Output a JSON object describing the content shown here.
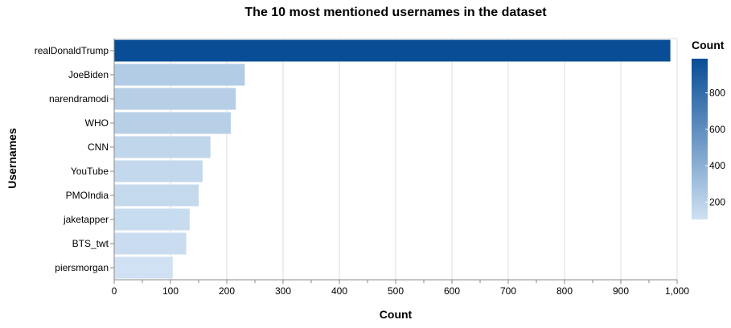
{
  "chart_data": {
    "type": "bar",
    "orientation": "horizontal",
    "title": "The 10 most mentioned usernames in the dataset",
    "xlabel": "Count",
    "ylabel": "Usernames",
    "categories": [
      "realDonaldTrump",
      "JoeBiden",
      "narendramodi",
      "WHO",
      "CNN",
      "YouTube",
      "PMOIndia",
      "jaketapper",
      "BTS_twt",
      "piersmorgan"
    ],
    "values": [
      988,
      232,
      216,
      207,
      171,
      157,
      150,
      134,
      128,
      104
    ],
    "xlim": [
      0,
      1000
    ],
    "xticks": [
      0,
      100,
      200,
      300,
      400,
      500,
      600,
      700,
      800,
      900,
      1000
    ],
    "xtick_labels": [
      "0",
      "100",
      "200",
      "300",
      "400",
      "500",
      "600",
      "700",
      "800",
      "900",
      "1,000"
    ],
    "grid": true,
    "legend": {
      "title": "Count",
      "placement": "right",
      "type": "gradient",
      "ticks": [
        200,
        400,
        600,
        800
      ],
      "tick_labels": [
        "200",
        "400",
        "600",
        "800"
      ]
    },
    "color_scale": {
      "domain": [
        104,
        988
      ],
      "range": [
        "#cfe1f2",
        "#084d96"
      ],
      "scheme": "blues"
    }
  }
}
